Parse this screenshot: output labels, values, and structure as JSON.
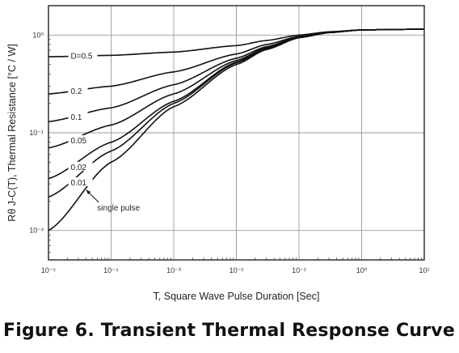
{
  "caption": "Figure 6. Transient Thermal Response Curve",
  "chart_data": {
    "type": "line",
    "xlabel": "T, Square Wave Pulse Duration [Sec]",
    "ylabel": "Rθ J-C(T), Thermal Resistance [°C / W]",
    "xscale": "log",
    "yscale": "log",
    "xlim": [
      1e-05,
      10
    ],
    "ylim": [
      0.005,
      2
    ],
    "xticks": [
      1e-05,
      0.0001,
      0.001,
      0.01,
      0.1,
      1,
      10
    ],
    "xtick_labels": [
      "10⁻⁵",
      "10⁻⁴",
      "10⁻³",
      "10⁻²",
      "10⁻¹",
      "10⁰",
      "10¹"
    ],
    "yticks": [
      0.01,
      0.1,
      1
    ],
    "ytick_labels": [
      "10⁻²",
      "10⁻¹",
      "10⁰"
    ],
    "grid": true,
    "series": [
      {
        "name": "D=0.5",
        "label_text": "D=0.5",
        "label_x": 2.2e-05,
        "x": [
          1e-05,
          0.0001,
          0.001,
          0.01,
          0.03,
          0.1,
          0.3,
          1,
          10
        ],
        "y": [
          0.6,
          0.62,
          0.67,
          0.78,
          0.88,
          1.0,
          1.08,
          1.13,
          1.15
        ]
      },
      {
        "name": "0.2",
        "label_text": "0.2",
        "label_x": 2.2e-05,
        "x": [
          1e-05,
          0.0001,
          0.001,
          0.01,
          0.03,
          0.1,
          0.3,
          1,
          10
        ],
        "y": [
          0.25,
          0.3,
          0.42,
          0.64,
          0.8,
          0.97,
          1.07,
          1.13,
          1.15
        ]
      },
      {
        "name": "0.1",
        "label_text": "0.1",
        "label_x": 2.2e-05,
        "x": [
          1e-05,
          0.0001,
          0.001,
          0.01,
          0.03,
          0.1,
          0.3,
          1,
          10
        ],
        "y": [
          0.13,
          0.18,
          0.31,
          0.58,
          0.76,
          0.96,
          1.07,
          1.13,
          1.15
        ]
      },
      {
        "name": "0.05",
        "label_text": "0.05",
        "label_x": 2.2e-05,
        "x": [
          1e-05,
          0.0001,
          0.001,
          0.01,
          0.03,
          0.1,
          0.3,
          1,
          10
        ],
        "y": [
          0.07,
          0.12,
          0.25,
          0.55,
          0.74,
          0.95,
          1.06,
          1.13,
          1.15
        ]
      },
      {
        "name": "0.02",
        "label_text": "0.02",
        "label_x": 2.2e-05,
        "x": [
          1e-05,
          0.0001,
          0.001,
          0.01,
          0.03,
          0.1,
          0.3,
          1,
          10
        ],
        "y": [
          0.034,
          0.08,
          0.21,
          0.53,
          0.73,
          0.95,
          1.06,
          1.13,
          1.15
        ]
      },
      {
        "name": "0.01",
        "label_text": "0.01",
        "label_x": 2.2e-05,
        "x": [
          1e-05,
          0.0001,
          0.001,
          0.01,
          0.03,
          0.1,
          0.3,
          1,
          10
        ],
        "y": [
          0.022,
          0.065,
          0.2,
          0.52,
          0.72,
          0.94,
          1.06,
          1.13,
          1.15
        ]
      },
      {
        "name": "single pulse",
        "label_text": "",
        "x": [
          1e-05,
          0.0001,
          0.001,
          0.01,
          0.03,
          0.1,
          0.3,
          1,
          10
        ],
        "y": [
          0.01,
          0.05,
          0.185,
          0.5,
          0.71,
          0.94,
          1.06,
          1.13,
          1.15
        ]
      }
    ],
    "annotations": [
      {
        "text": "single pulse",
        "x": 6e-05,
        "y": 0.016,
        "arrow_to": [
          4e-05,
          0.026
        ]
      }
    ]
  }
}
